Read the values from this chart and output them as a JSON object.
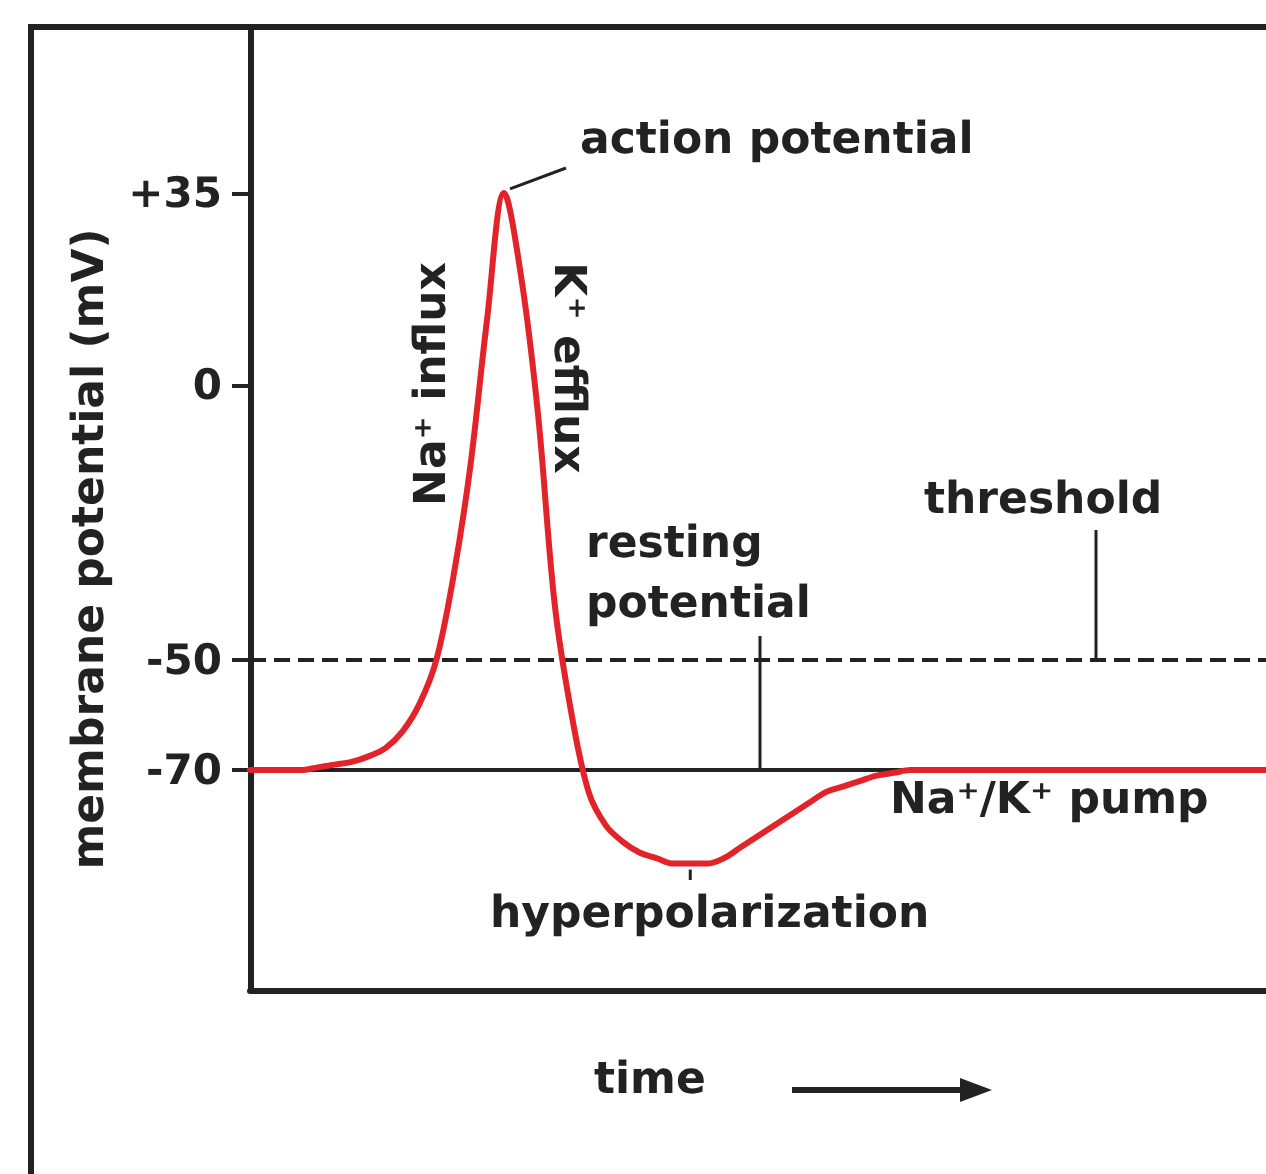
{
  "chart_data": {
    "type": "line",
    "xlabel": "time",
    "ylabel": "membrane potential (mV)",
    "categories": [
      null,
      null,
      null,
      null,
      null,
      null,
      null,
      null,
      null,
      null,
      null,
      null,
      null,
      null,
      null,
      null,
      null,
      null,
      null,
      null,
      null,
      null,
      null,
      null,
      null,
      null,
      null,
      null,
      null,
      null,
      null,
      null,
      null,
      null,
      null,
      null,
      null,
      null,
      null,
      null,
      null,
      null,
      null,
      null,
      null,
      null,
      null,
      null,
      null,
      null,
      null,
      null,
      null,
      null,
      null,
      null,
      null,
      null,
      null,
      null,
      null
    ],
    "series": [
      {
        "color": "#e3232a",
        "values": [
          -70,
          -70,
          -70,
          -70,
          -69.5,
          -69,
          -68.5,
          -67.5,
          -66,
          -63,
          -58,
          -50,
          -35,
          -15,
          12,
          35,
          20,
          -5,
          -40,
          -60,
          -74,
          -80,
          -83,
          -85,
          -86,
          -87,
          -87,
          -87,
          -86,
          -84,
          -82,
          -80,
          -78,
          -76,
          -74,
          -73,
          -72,
          -71,
          -70.5,
          -70,
          -70,
          -70,
          -70,
          -70,
          -70,
          -70,
          -70,
          -70,
          -70,
          -70,
          -70,
          -70,
          -70,
          -70,
          -70,
          -70,
          -70,
          -70,
          -70,
          -70,
          -70
        ]
      }
    ],
    "ylim": [
      -110,
      65
    ],
    "yticks": [
      {
        "value": 35,
        "label": "+35"
      },
      0,
      -50,
      -70
    ],
    "ref_lines": [
      {
        "axis": "y",
        "value": -50,
        "label": "threshold",
        "color": "#222222",
        "line_style": "dashed"
      },
      {
        "axis": "y",
        "value": -70,
        "label": "resting potential",
        "color": "#222222",
        "line_style": "solid"
      }
    ],
    "annotations": [
      "action potential",
      "Na⁺ influx",
      "K⁺ efflux",
      "hyperpolarization",
      "Na⁺/K⁺ pump"
    ],
    "line_style": "solid",
    "tick_labels": "y",
    "grid": false
  }
}
